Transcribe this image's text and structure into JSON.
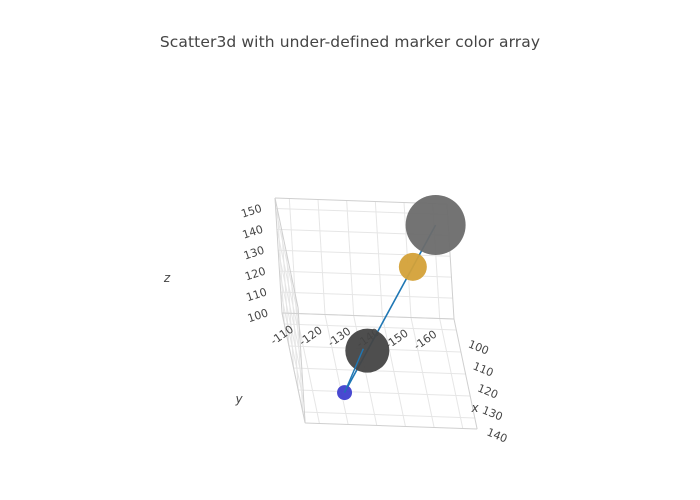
{
  "chart_data": {
    "type": "scatter3d",
    "title": "Scatter3d with under-defined marker color array",
    "axes": {
      "x": {
        "title": "x",
        "range": [
          95,
          145
        ],
        "tickvals": [
          100,
          110,
          120,
          130,
          140
        ]
      },
      "y": {
        "title": "y",
        "range": [
          -165,
          -105
        ],
        "tickvals": [
          -160,
          -150,
          -140,
          -130,
          -120,
          -110
        ]
      },
      "z": {
        "title": "z",
        "range": [
          100,
          155
        ],
        "tickvals": [
          100,
          110,
          120,
          130,
          140,
          150
        ]
      }
    },
    "mode": "lines+markers",
    "line_color": "#1f77b4",
    "points": [
      {
        "x": 100,
        "y": -160,
        "z": 150,
        "size": 60,
        "color": "#6b6b6b"
      },
      {
        "x": 110,
        "y": -150,
        "z": 140,
        "size": 28,
        "color": "#d4a138"
      },
      {
        "x": 130,
        "y": -130,
        "z": 120,
        "size": 44,
        "color": "#444444"
      },
      {
        "x": 140,
        "y": -120,
        "z": 110,
        "size": 15,
        "color": "#3f3fcf"
      }
    ]
  }
}
